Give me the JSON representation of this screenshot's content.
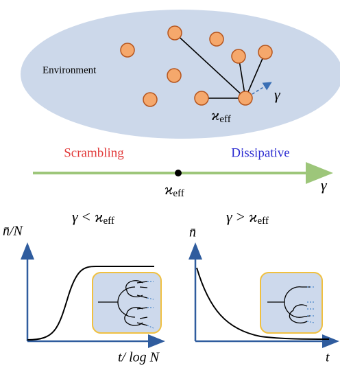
{
  "environment": {
    "label": "Environment",
    "rate": "γ",
    "coupling": {
      "symbol": "ϰ",
      "sub": "eff"
    }
  },
  "axis": {
    "left": "Scrambling",
    "right": "Dissipative",
    "point": {
      "symbol": "ϰ",
      "sub": "eff"
    },
    "end": "γ"
  },
  "panels": [
    {
      "condition": {
        "lhs": "γ",
        "op": "<",
        "rhs": "ϰ",
        "sub": "eff"
      },
      "ylabel": "n̄/N",
      "xlabel": "t/ log N"
    },
    {
      "condition": {
        "lhs": "γ",
        "op": ">",
        "rhs": "ϰ",
        "sub": "eff"
      },
      "ylabel": "n̄",
      "xlabel": "t"
    }
  ]
}
